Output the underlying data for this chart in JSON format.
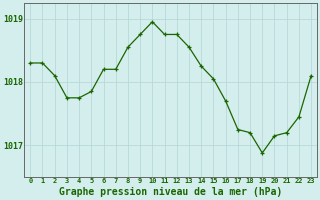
{
  "x": [
    0,
    1,
    2,
    3,
    4,
    5,
    6,
    7,
    8,
    9,
    10,
    11,
    12,
    13,
    14,
    15,
    16,
    17,
    18,
    19,
    20,
    21,
    22,
    23
  ],
  "y": [
    1018.3,
    1018.3,
    1018.1,
    1017.75,
    1017.75,
    1017.85,
    1018.2,
    1018.2,
    1018.55,
    1018.75,
    1018.95,
    1018.75,
    1018.75,
    1018.55,
    1018.25,
    1018.05,
    1017.7,
    1017.25,
    1017.2,
    1016.88,
    1017.15,
    1017.2,
    1017.45,
    1018.1
  ],
  "line_color": "#1a6600",
  "marker_color": "#1a6600",
  "bg_color": "#d4eeee",
  "grid_color": "#b8d8d8",
  "yticks": [
    1017,
    1018,
    1019
  ],
  "xlabel_text": "Graphe pression niveau de la mer (hPa)",
  "xlabel_fontsize": 7.0,
  "xlim": [
    -0.5,
    23.5
  ],
  "ylim": [
    1016.5,
    1019.25
  ],
  "axis_color": "#666666"
}
